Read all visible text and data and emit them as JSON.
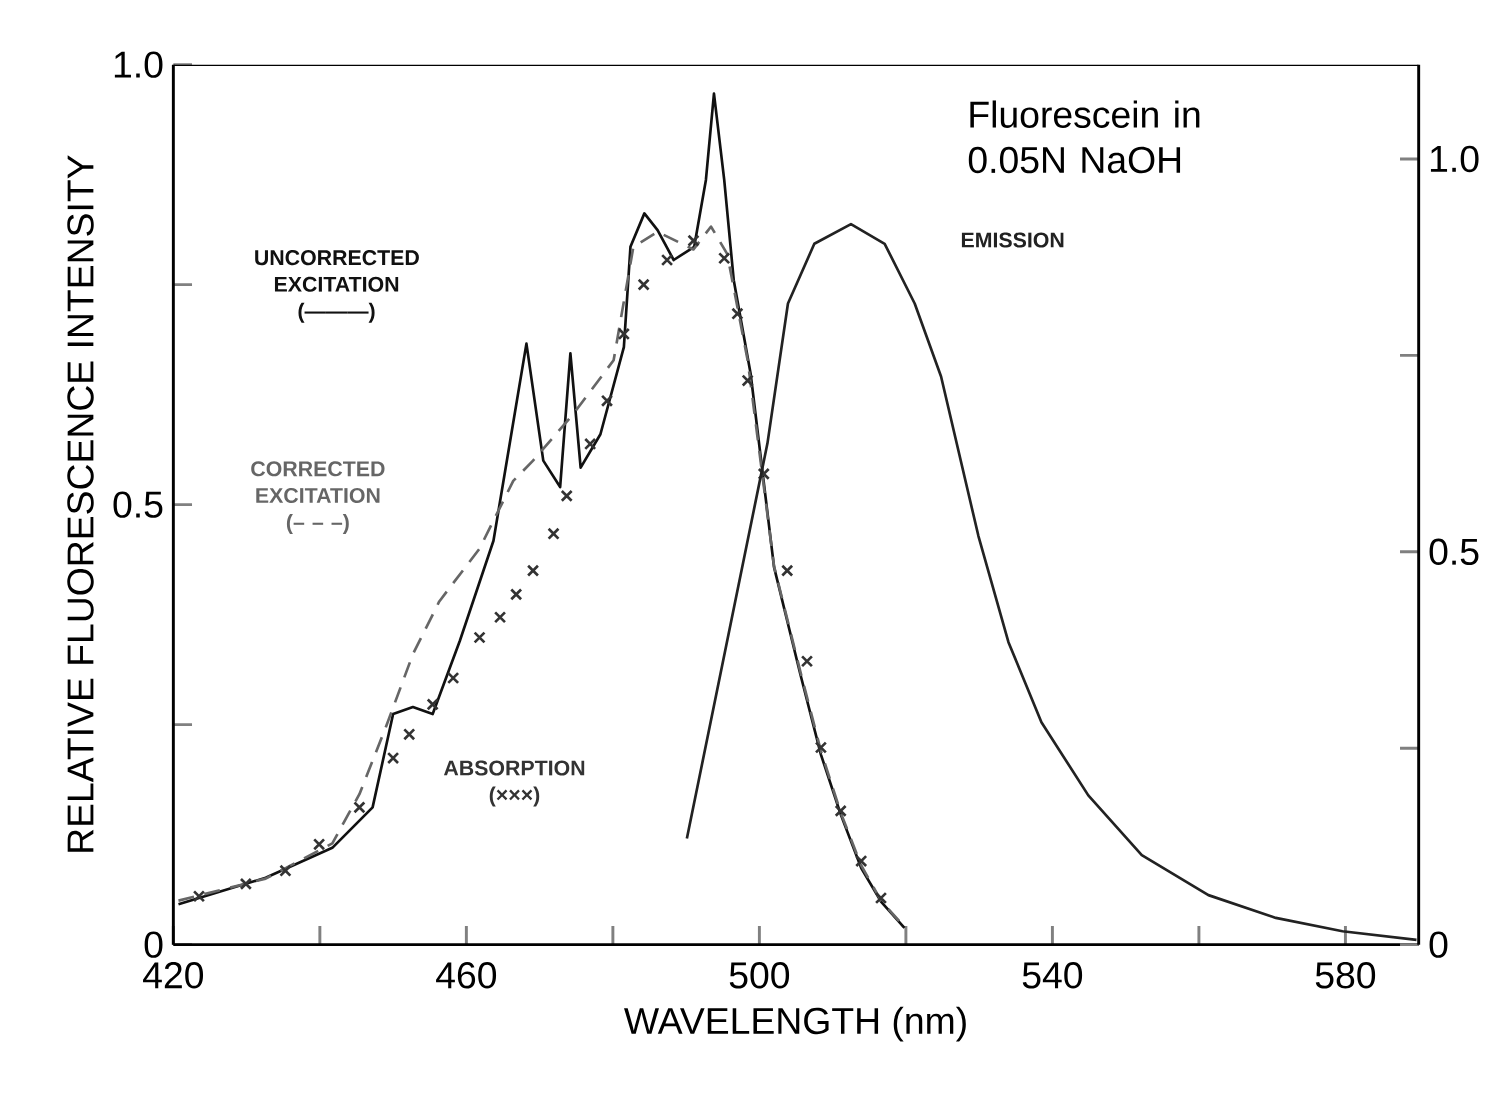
{
  "chart_data": {
    "type": "line",
    "title": "Fluorescein in 0.05N NaOH",
    "xlabel": "WAVELENGTH (nm)",
    "ylabel": "RELATIVE FLUORESCENCE INTENSITY",
    "xlim": [
      420,
      590
    ],
    "ylim": [
      0,
      1.0
    ],
    "y2lim": [
      0,
      1.12
    ],
    "xticks": [
      420,
      {
        "value": 440,
        "label": null
      },
      460,
      {
        "value": 480,
        "label": null
      },
      500,
      {
        "value": 520,
        "label": null
      },
      540,
      {
        "value": 560,
        "label": null
      },
      580
    ],
    "yticks": [
      0,
      {
        "value": 0.25,
        "label": null
      },
      0.5,
      {
        "value": 0.75,
        "label": null
      },
      {
        "value": 1.0,
        "label": "1.0"
      }
    ],
    "y2ticks": [
      0,
      {
        "value": 0.25,
        "label": null
      },
      0.5,
      {
        "value": 0.75,
        "label": null
      },
      {
        "value": 1.0,
        "label": "1.0"
      }
    ],
    "series": [
      {
        "name": "UNCORRECTED EXCITATION (———)",
        "line_style": "solid",
        "color": "#111111",
        "x": [
          420.7,
          432.6,
          441.7,
          447.2,
          450,
          452.7,
          455.4,
          459.1,
          463.7,
          468.2,
          470.5,
          472.8,
          474.2,
          475.6,
          478.3,
          481.5,
          482.4,
          484.3,
          486.1,
          488.3,
          491.1,
          492.7,
          493.8,
          495.2,
          496.5,
          498.8,
          502,
          505.6,
          508.4,
          511.1,
          513.9,
          516.6,
          519.8
        ],
        "values": [
          0.046,
          0.076,
          0.11,
          0.156,
          0.262,
          0.27,
          0.262,
          0.345,
          0.459,
          0.683,
          0.55,
          0.52,
          0.672,
          0.542,
          0.58,
          0.679,
          0.793,
          0.831,
          0.812,
          0.778,
          0.793,
          0.869,
          0.967,
          0.869,
          0.755,
          0.649,
          0.429,
          0.307,
          0.216,
          0.148,
          0.087,
          0.049,
          0.019
        ]
      },
      {
        "name": "CORRECTED EXCITATION (– – –)",
        "line_style": "dashed",
        "color": "#666666",
        "x": [
          420.7,
          432.6,
          441.7,
          445.4,
          449,
          452.7,
          456.3,
          461.8,
          466.4,
          469.1,
          474.6,
          480.1,
          482.8,
          486.1,
          491,
          493.4,
          495.6,
          498.4,
          502,
          505.6,
          508.4,
          511.1,
          513.9,
          516.6,
          519.8
        ],
        "values": [
          0.05,
          0.075,
          0.115,
          0.171,
          0.247,
          0.33,
          0.39,
          0.45,
          0.527,
          0.55,
          0.603,
          0.664,
          0.793,
          0.81,
          0.79,
          0.816,
          0.785,
          0.664,
          0.43,
          0.31,
          0.22,
          0.15,
          0.09,
          0.05,
          0.02
        ]
      },
      {
        "name": "ABSORPTION (×××)",
        "type": "scatter",
        "marker": "cross",
        "color": "#333333",
        "x": [
          423.5,
          429.9,
          435.3,
          439.9,
          445.4,
          450,
          452.2,
          455.4,
          458.2,
          461.8,
          464.6,
          466.8,
          469.1,
          471.9,
          473.7,
          476.9,
          479.2,
          481.5,
          484.2,
          487.4,
          491,
          495.2,
          497,
          498.4,
          500.6,
          503.8,
          506.5,
          508.4,
          511.1,
          513.9,
          516.6
        ],
        "values": [
          0.055,
          0.069,
          0.084,
          0.114,
          0.156,
          0.212,
          0.239,
          0.273,
          0.303,
          0.349,
          0.372,
          0.398,
          0.425,
          0.467,
          0.51,
          0.569,
          0.618,
          0.694,
          0.75,
          0.778,
          0.8,
          0.78,
          0.717,
          0.641,
          0.535,
          0.425,
          0.322,
          0.224,
          0.152,
          0.095,
          0.053
        ]
      },
      {
        "name": "EMISSION",
        "line_style": "solid",
        "axis": "y2",
        "color": "#222222",
        "x": [
          490.1,
          501.1,
          503.9,
          507.5,
          512.5,
          517.1,
          521.2,
          524.8,
          529.9,
          534,
          538.5,
          544.9,
          552.2,
          561.3,
          570.5,
          579.6,
          589.7
        ],
        "values": [
          0.135,
          0.638,
          0.816,
          0.892,
          0.917,
          0.892,
          0.816,
          0.723,
          0.52,
          0.385,
          0.283,
          0.19,
          0.114,
          0.063,
          0.034,
          0.017,
          0.006
        ]
      }
    ]
  }
}
